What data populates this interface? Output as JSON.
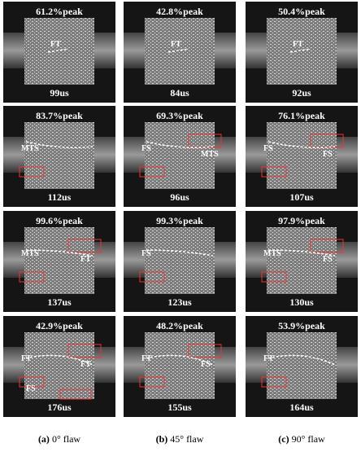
{
  "columns": [
    {
      "tag": "(a)",
      "caption": "0° flaw",
      "frames": [
        {
          "peak": "61.2%peak",
          "time": "99us",
          "labels": [
            "FT"
          ]
        },
        {
          "peak": "83.7%peak",
          "time": "112us",
          "labels": [
            "MTS"
          ]
        },
        {
          "peak": "99.6%peak",
          "time": "137us",
          "labels": [
            "MTS",
            "FT"
          ]
        },
        {
          "peak": "42.9%peak",
          "time": "176us",
          "labels": [
            "FT",
            "FT",
            "FS"
          ]
        }
      ]
    },
    {
      "tag": "(b)",
      "caption": "45° flaw",
      "frames": [
        {
          "peak": "42.8%peak",
          "time": "84us",
          "labels": [
            "FT"
          ]
        },
        {
          "peak": "69.3%peak",
          "time": "96us",
          "labels": [
            "FS",
            "MTS"
          ]
        },
        {
          "peak": "99.3%peak",
          "time": "123us",
          "labels": [
            "FS"
          ]
        },
        {
          "peak": "48.2%peak",
          "time": "155us",
          "labels": [
            "FT",
            "FS"
          ]
        }
      ]
    },
    {
      "tag": "(c)",
      "caption": "90° flaw",
      "frames": [
        {
          "peak": "50.4%peak",
          "time": "92us",
          "labels": [
            "FT"
          ]
        },
        {
          "peak": "76.1%peak",
          "time": "107us",
          "labels": [
            "FS",
            "FS"
          ]
        },
        {
          "peak": "97.9%peak",
          "time": "130us",
          "labels": [
            "MTS",
            "FS"
          ]
        },
        {
          "peak": "53.9%peak",
          "time": "164us",
          "labels": [
            "FT"
          ]
        }
      ]
    }
  ]
}
